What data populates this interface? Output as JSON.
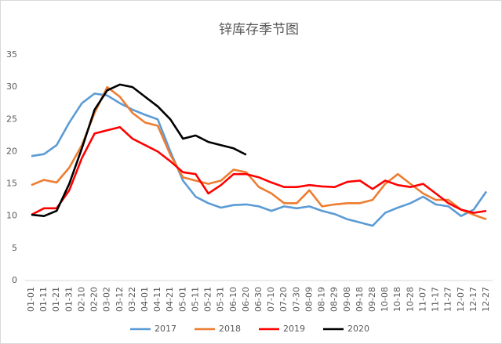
{
  "chart_data": {
    "type": "line",
    "title": "锌库存季节图",
    "categories": [
      "01-01",
      "01-11",
      "01-21",
      "01-31",
      "02-10",
      "02-20",
      "03-02",
      "03-12",
      "03-22",
      "04-01",
      "04-11",
      "04-21",
      "05-01",
      "05-11",
      "05-21",
      "05-31",
      "06-10",
      "06-20",
      "06-30",
      "07-10",
      "07-20",
      "07-30",
      "08-09",
      "08-19",
      "08-29",
      "09-08",
      "09-18",
      "09-28",
      "10-08",
      "10-18",
      "10-28",
      "11-07",
      "11-17",
      "11-27",
      "12-07",
      "12-17",
      "12-27"
    ],
    "series": [
      {
        "name": "2017",
        "color": "#5b9bd5",
        "values": [
          19.3,
          19.6,
          21,
          24.5,
          27.5,
          29,
          28.7,
          27.5,
          26.5,
          25.7,
          25,
          20,
          15.5,
          13,
          12,
          11.3,
          11.7,
          11.8,
          11.5,
          10.8,
          11.5,
          11.2,
          11.5,
          10.8,
          10.3,
          9.5,
          9,
          8.5,
          10.5,
          11.3,
          12,
          13,
          11.8,
          11.5,
          10,
          11,
          13.8
        ]
      },
      {
        "name": "2018",
        "color": "#ed7d31",
        "values": [
          14.8,
          15.6,
          15.2,
          17.5,
          21,
          26,
          30,
          28.5,
          26,
          24.5,
          24,
          19.5,
          16,
          15.5,
          15,
          15.5,
          17.2,
          16.8,
          14.5,
          13.5,
          12,
          12,
          14,
          11.5,
          11.8,
          12,
          12,
          12.5,
          15,
          16.5,
          15,
          13.5,
          12.5,
          12.5,
          11,
          10.2,
          9.5
        ]
      },
      {
        "name": "2019",
        "color": "#ff0000",
        "values": [
          10.2,
          11.2,
          11.2,
          14,
          19,
          22.8,
          23.3,
          23.8,
          22,
          21,
          20,
          18.5,
          16.8,
          16.5,
          13.5,
          14.8,
          16.5,
          16.5,
          16,
          15.2,
          14.5,
          14.5,
          14.8,
          14.6,
          14.5,
          15.3,
          15.5,
          14.2,
          15.5,
          14.8,
          14.5,
          15,
          13.5,
          12,
          11,
          10.5,
          10.8
        ]
      },
      {
        "name": "2020",
        "color": "#000000",
        "values": [
          10.2,
          10,
          10.8,
          15,
          20.5,
          26.5,
          29.5,
          30.4,
          30,
          28.5,
          27,
          25,
          22,
          22.5,
          21.5,
          21,
          20.5,
          19.5,
          null,
          null,
          null,
          null,
          null,
          null,
          null,
          null,
          null,
          null,
          null,
          null,
          null,
          null,
          null,
          null,
          null,
          null,
          null
        ]
      }
    ],
    "ylim": [
      0,
      35
    ],
    "yticks": [
      0,
      5,
      10,
      15,
      20,
      25,
      30,
      35
    ],
    "legend": "bottom"
  }
}
